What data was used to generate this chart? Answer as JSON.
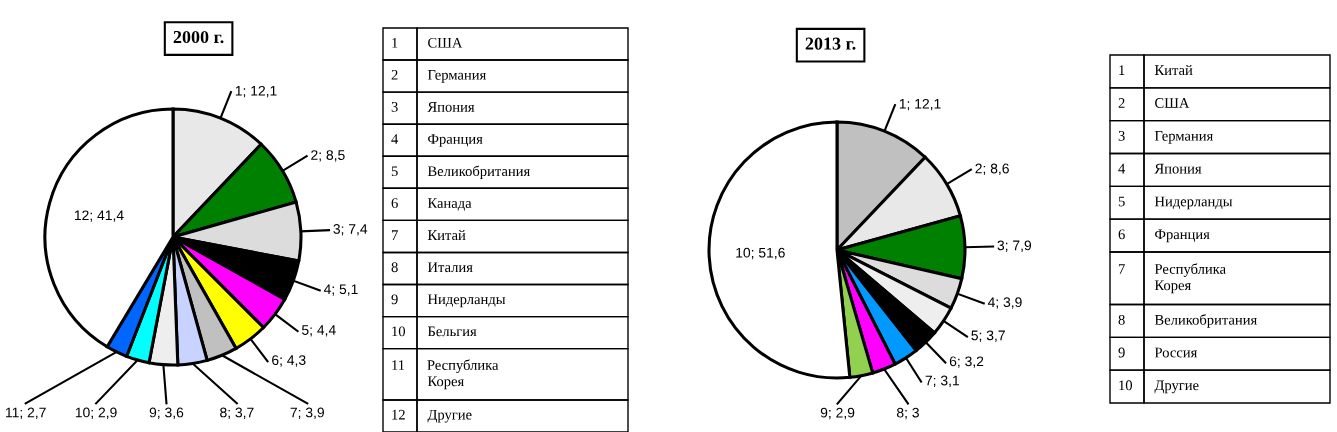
{
  "chart_data": [
    {
      "type": "pie",
      "title": "2000 г.",
      "categories": [
        null,
        null,
        null,
        null,
        null,
        null,
        null,
        null,
        null,
        null,
        null,
        null
      ],
      "values": [
        12.1,
        8.5,
        7.4,
        5.1,
        4.4,
        4.3,
        3.9,
        3.7,
        3.6,
        2.9,
        2.7,
        41.4
      ],
      "value_labels": [
        "1; 12,1",
        "2; 8,5",
        "3; 7,4",
        "4; 5,1",
        "5; 4,4",
        "6; 4,3",
        "7; 3,9",
        "8; 3,7",
        "9; 3,6",
        "10; 2,9",
        "11; 2,7",
        "12; 41,4"
      ],
      "colors": [
        "#e8e8e8",
        "#008000",
        "#dcdcdc",
        "#000000",
        "#ff00ff",
        "#ffff00",
        "#c0c0c0",
        "#c8d4ff",
        "#eeeeee",
        "#00ffff",
        "#0066ff",
        "#ffffff"
      ]
    },
    {
      "type": "other",
      "annotations": [
        "1",
        "США",
        "2",
        "Германия",
        "3",
        "Япония",
        "4",
        "Франция",
        "5",
        "Великобритания",
        "6",
        "Канада",
        "7",
        "Китай",
        "8",
        "Италия",
        "9",
        "Нидерланды",
        "10",
        "Бельгия",
        "11",
        "Республика\nКорея",
        "12",
        "Другие"
      ]
    },
    {
      "type": "pie",
      "title": "2013 г.",
      "categories": [
        null,
        null,
        null,
        null,
        null,
        null,
        null,
        null,
        null,
        null
      ],
      "values": [
        12.1,
        8.6,
        7.9,
        3.9,
        3.7,
        3.2,
        3.1,
        3,
        2.9,
        51.6
      ],
      "value_labels": [
        "1; 12,1",
        "2; 8,6",
        "3; 7,9",
        "4; 3,9",
        "5; 3,7",
        "6; 3,2",
        "7; 3,1",
        "8; 3",
        "9; 2,9",
        "10; 51,6"
      ],
      "colors": [
        "#c0c0c0",
        "#e8e8e8",
        "#008000",
        "#dcdcdc",
        "#eeeeee",
        "#000000",
        "#0099ff",
        "#ff00ff",
        "#92d050",
        "#ffffff"
      ]
    },
    {
      "type": "other",
      "annotations": [
        "1",
        "Китай",
        "2",
        "США",
        "3",
        "Германия",
        "4",
        "Япония",
        "5",
        "Нидерланды",
        "6",
        "Франция",
        "7",
        "Республика\nКорея",
        "8",
        "Великобритания",
        "9",
        "Россия",
        "10",
        "Другие"
      ]
    }
  ]
}
